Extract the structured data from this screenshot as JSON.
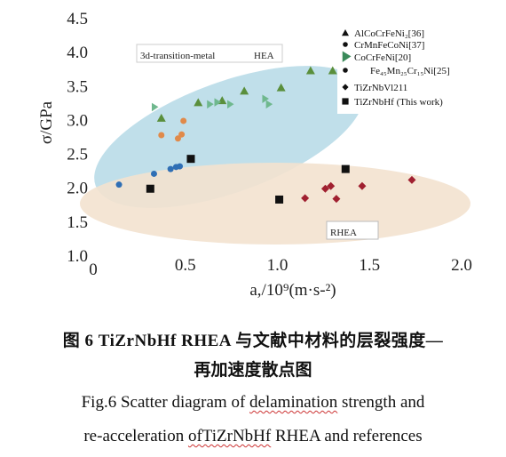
{
  "chart_data": {
    "type": "scatter",
    "xlabel": "a,/10⁹(m·s-²)",
    "ylabel": "σ/GPa",
    "xlim": [
      0,
      2.0
    ],
    "ylim": [
      1.0,
      4.5
    ],
    "x_ticks": [
      "0",
      "0.5",
      "1.0",
      "1.5",
      "2.0"
    ],
    "y_ticks": [
      "1.0",
      "1.5",
      "2.0",
      "2.5",
      "3.0",
      "3.5",
      "4.0",
      "4.5"
    ],
    "annotations": [
      "3d-transition-metal",
      "HEA",
      "RHEA"
    ],
    "legend_position": "top-right",
    "colors": {
      "blue_ellipse": "#b9dbe8",
      "tan_ellipse": "#f3e2cf",
      "green": "#5a8f3c",
      "teal": "#6fb88e",
      "orange": "#e08a4a",
      "blue": "#2f6fb5",
      "darkred": "#a02030",
      "black": "#111111"
    },
    "series": [
      {
        "name": "AlCoCrFeNi₂[36]",
        "marker": "triangle",
        "color": "#5a8f3c",
        "x": [
          0.37,
          0.57,
          0.7,
          0.82,
          1.02,
          1.18,
          1.3
        ],
        "y": [
          3.02,
          3.25,
          3.28,
          3.42,
          3.47,
          3.72,
          3.72
        ]
      },
      {
        "name": "CrMnFeCoNi[37]",
        "marker": "circle",
        "color": "#e08a4a",
        "x": [
          0.37,
          0.46,
          0.48,
          0.49
        ],
        "y": [
          2.77,
          2.72,
          2.78,
          2.98
        ]
      },
      {
        "name": "CoCrFeNi[20]",
        "marker": "flag",
        "color": "#6fb88e",
        "x": [
          0.33,
          0.63,
          0.67,
          0.74,
          0.93,
          0.95
        ],
        "y": [
          3.18,
          3.22,
          3.25,
          3.22,
          3.3,
          3.22
        ]
      },
      {
        "name": "Fe₄₅Mn₂₅Cr₁₅Ni[25]",
        "marker": "circle",
        "color": "#2f6fb5",
        "x": [
          0.14,
          0.33,
          0.42,
          0.45,
          0.47
        ],
        "y": [
          2.04,
          2.2,
          2.27,
          2.3,
          2.31
        ]
      },
      {
        "name": "TiZrNbVl211",
        "marker": "diamond",
        "color": "#a02030",
        "x": [
          1.15,
          1.26,
          1.29,
          1.32,
          1.46,
          1.73
        ],
        "y": [
          1.84,
          1.98,
          2.02,
          1.83,
          2.02,
          2.11
        ]
      },
      {
        "name": "TiZrNbHf (This work)",
        "marker": "square",
        "color": "#111111",
        "x": [
          0.31,
          0.53,
          1.01,
          1.37
        ],
        "y": [
          1.98,
          2.42,
          1.82,
          2.27
        ]
      }
    ]
  },
  "caption": {
    "zh_line1": "图 6   TiZrNbHf RHEA 与文献中材料的层裂强度—",
    "zh_line2": "再加速度散点图",
    "en_line1_pre": "Fig.6 Scatter diagram of ",
    "en_line1_u": "delamination",
    "en_line1_post": " strength and",
    "en_line2_pre": "re-acceleration ",
    "en_line2_u": "ofTiZrNbHf",
    "en_line2_post": " RHEA and references"
  }
}
